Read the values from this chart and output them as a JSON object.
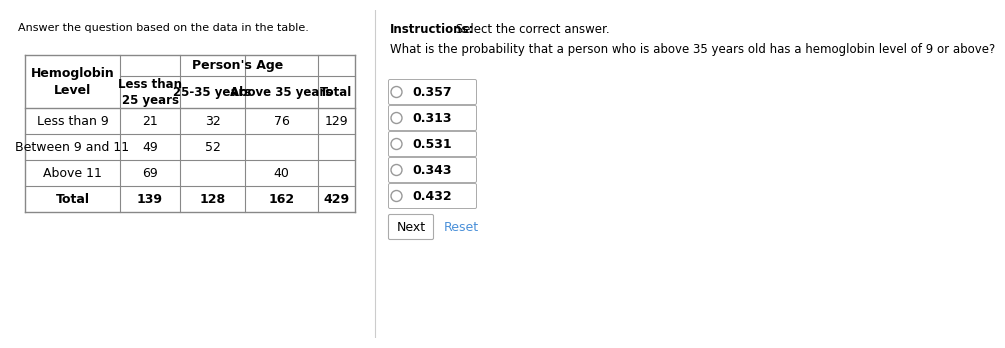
{
  "left_instruction": "Answer the question based on the data in the table.",
  "right_instruction_bold": "Instructions:",
  "right_instruction_normal": " Select the correct answer.",
  "question": "What is the probability that a person who is above 35 years old has a hemoglobin level of 9 or above?",
  "table": {
    "col_header_main": "Person's Age",
    "rows": [
      [
        "Less than 9",
        "21",
        "32",
        "76",
        "129"
      ],
      [
        "Between 9 and 11",
        "49",
        "52",
        "",
        ""
      ],
      [
        "Above 11",
        "69",
        "",
        "40",
        ""
      ],
      [
        "Total",
        "139",
        "128",
        "162",
        "429"
      ]
    ]
  },
  "options": [
    "0.357",
    "0.313",
    "0.531",
    "0.343",
    "0.432"
  ],
  "button_next": "Next",
  "button_reset": "Reset",
  "bg_color": "#ffffff",
  "text_color": "#000000",
  "reset_color": "#4a90d9",
  "border_color": "#aaaaaa",
  "table_line_color": "#888888"
}
